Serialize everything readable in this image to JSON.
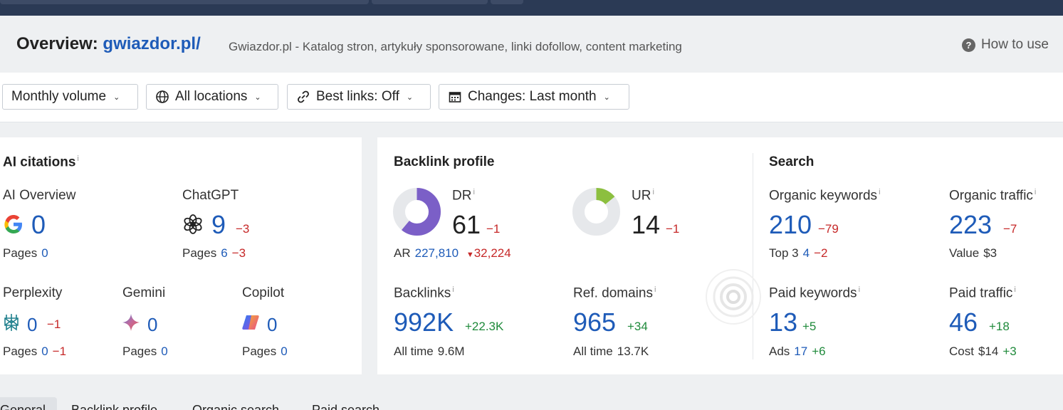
{
  "header": {
    "title_prefix": "Overview:",
    "domain": "gwiazdor.pl/",
    "subtitle": "Gwiazdor.pl - Katalog stron, artykuły sponsorowane, linki dofollow, content marketing",
    "how_to_use": "How to use"
  },
  "filters": {
    "volume": "Monthly volume",
    "locations": "All locations",
    "best_links": "Best links: Off",
    "changes": "Changes: Last month"
  },
  "ai_citations": {
    "title": "AI citations",
    "ai_overview": {
      "label": "AI Overview",
      "value": "0",
      "pages_label": "Pages",
      "pages": "0"
    },
    "chatgpt": {
      "label": "ChatGPT",
      "value": "9",
      "change": "−3",
      "pages_label": "Pages",
      "pages": "6",
      "pages_change": "−3"
    },
    "perplexity": {
      "label": "Perplexity",
      "value": "0",
      "change": "−1",
      "pages_label": "Pages",
      "pages": "0",
      "pages_change": "−1"
    },
    "gemini": {
      "label": "Gemini",
      "value": "0",
      "pages_label": "Pages",
      "pages": "0"
    },
    "copilot": {
      "label": "Copilot",
      "value": "0",
      "pages_label": "Pages",
      "pages": "0"
    }
  },
  "backlink_profile": {
    "title": "Backlink profile",
    "dr": {
      "label": "DR",
      "value": "61",
      "change": "−1",
      "gauge": 0.61
    },
    "ar": {
      "label": "AR",
      "value": "227,810",
      "change": "32,224"
    },
    "ur": {
      "label": "UR",
      "value": "14",
      "change": "−1",
      "gauge": 0.14
    },
    "backlinks": {
      "label": "Backlinks",
      "value": "992K",
      "change": "+22.3K",
      "sub_label": "All time",
      "sub_value": "9.6M"
    },
    "ref_domains": {
      "label": "Ref. domains",
      "value": "965",
      "change": "+34",
      "sub_label": "All time",
      "sub_value": "13.7K"
    }
  },
  "search": {
    "title": "Search",
    "organic_keywords": {
      "label": "Organic keywords",
      "value": "210",
      "change": "−79",
      "sub_label": "Top 3",
      "sub_value": "4",
      "sub_change": "−2"
    },
    "organic_traffic": {
      "label": "Organic traffic",
      "value": "223",
      "change": "−7",
      "sub_label": "Value",
      "sub_value": "$3"
    },
    "paid_keywords": {
      "label": "Paid keywords",
      "value": "13",
      "change": "+5",
      "sub_label": "Ads",
      "sub_value": "17",
      "sub_change": "+6"
    },
    "paid_traffic": {
      "label": "Paid traffic",
      "value": "46",
      "change": "+18",
      "sub_label": "Cost",
      "sub_value": "$14",
      "sub_change": "+3"
    }
  },
  "tabs": [
    "General",
    "Backlink profile",
    "Organic search",
    "Paid search"
  ],
  "colors": {
    "accent": "#1e5bb8",
    "negative": "#c62828",
    "positive": "#1f8a3b",
    "dr_gauge": "#7b5fc7",
    "ur_gauge": "#8cbf3f"
  },
  "icons": {
    "ai_overview": "google-icon",
    "chatgpt": "chatgpt-icon",
    "perplexity": "perplexity-icon",
    "gemini": "gemini-icon",
    "copilot": "copilot-icon"
  }
}
